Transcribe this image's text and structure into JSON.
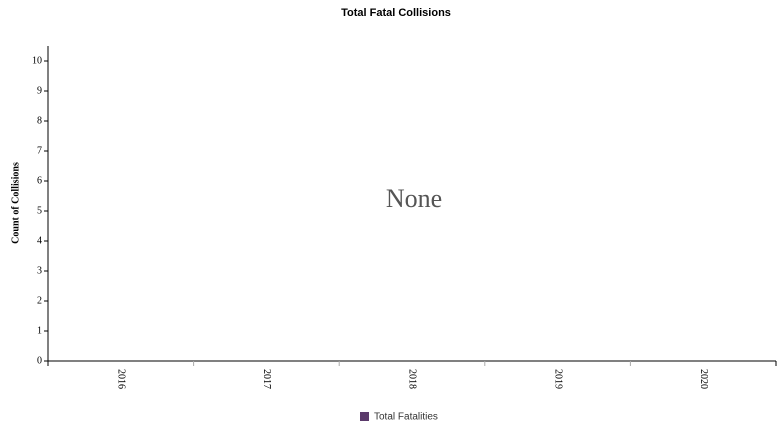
{
  "chart_data": {
    "type": "bar",
    "title": "Total Fatal Collisions",
    "y_label": "Count of Collisions",
    "annotation": "None",
    "categories": [
      "2016",
      "2017",
      "2018",
      "2019",
      "2020"
    ],
    "series": [
      {
        "name": "Total Fatalities",
        "color": "#5b3a6b",
        "values": [
          0,
          0,
          0,
          0,
          0
        ]
      }
    ],
    "ylim": [
      0,
      10.5
    ],
    "yticks": [
      0,
      1,
      2,
      3,
      4,
      5,
      6,
      7,
      8,
      9,
      10
    ],
    "legend": "bottom"
  }
}
